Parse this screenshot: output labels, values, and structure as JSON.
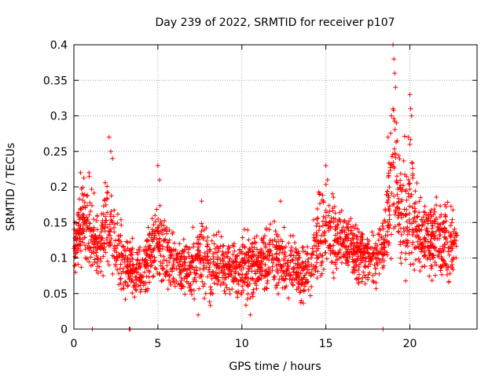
{
  "chart_data": {
    "type": "scatter",
    "title": "Day 239 of 2022, SRMTID for receiver p107",
    "xlabel": "GPS time / hours",
    "ylabel": "SRMTID / TECUs",
    "xlim": [
      0,
      24
    ],
    "ylim": [
      0,
      0.4
    ],
    "xticks": [
      0,
      5,
      10,
      15,
      20
    ],
    "xtick_labels": [
      "0",
      "5",
      "10",
      "15",
      "20"
    ],
    "yticks": [
      0,
      0.05,
      0.1,
      0.15,
      0.2,
      0.25,
      0.3,
      0.35,
      0.4
    ],
    "ytick_labels": [
      "0",
      "0.05",
      "0.1",
      "0.15",
      "0.2",
      "0.25",
      "0.3",
      "0.35",
      "0.4"
    ],
    "grid": true,
    "marker": "+",
    "color": "#ff0000",
    "data_extent": {
      "x_min": 0.0,
      "x_max": 22.8
    },
    "envelope": [
      {
        "x": 0.0,
        "low": 0.08,
        "high": 0.15
      },
      {
        "x": 0.5,
        "low": 0.08,
        "high": 0.22
      },
      {
        "x": 1.0,
        "low": 0.05,
        "high": 0.22
      },
      {
        "x": 1.5,
        "low": 0.06,
        "high": 0.17
      },
      {
        "x": 2.0,
        "low": 0.06,
        "high": 0.25
      },
      {
        "x": 2.5,
        "low": 0.04,
        "high": 0.2
      },
      {
        "x": 3.0,
        "low": 0.03,
        "high": 0.15
      },
      {
        "x": 4.0,
        "low": 0.04,
        "high": 0.12
      },
      {
        "x": 5.0,
        "low": 0.05,
        "high": 0.2
      },
      {
        "x": 6.0,
        "low": 0.04,
        "high": 0.14
      },
      {
        "x": 7.0,
        "low": 0.03,
        "high": 0.14
      },
      {
        "x": 7.5,
        "low": 0.03,
        "high": 0.18
      },
      {
        "x": 8.0,
        "low": 0.03,
        "high": 0.15
      },
      {
        "x": 9.0,
        "low": 0.04,
        "high": 0.14
      },
      {
        "x": 10.0,
        "low": 0.03,
        "high": 0.14
      },
      {
        "x": 10.5,
        "low": 0.03,
        "high": 0.16
      },
      {
        "x": 11.0,
        "low": 0.04,
        "high": 0.14
      },
      {
        "x": 12.0,
        "low": 0.04,
        "high": 0.17
      },
      {
        "x": 13.0,
        "low": 0.03,
        "high": 0.14
      },
      {
        "x": 14.0,
        "low": 0.02,
        "high": 0.14
      },
      {
        "x": 14.5,
        "low": 0.05,
        "high": 0.2
      },
      {
        "x": 15.0,
        "low": 0.06,
        "high": 0.22
      },
      {
        "x": 16.0,
        "low": 0.07,
        "high": 0.18
      },
      {
        "x": 17.0,
        "low": 0.05,
        "high": 0.16
      },
      {
        "x": 18.0,
        "low": 0.05,
        "high": 0.15
      },
      {
        "x": 18.5,
        "low": 0.05,
        "high": 0.2
      },
      {
        "x": 19.0,
        "low": 0.08,
        "high": 0.39
      },
      {
        "x": 19.5,
        "low": 0.05,
        "high": 0.25
      },
      {
        "x": 20.0,
        "low": 0.05,
        "high": 0.32
      },
      {
        "x": 20.5,
        "low": 0.06,
        "high": 0.2
      },
      {
        "x": 21.0,
        "low": 0.05,
        "high": 0.2
      },
      {
        "x": 22.0,
        "low": 0.05,
        "high": 0.2
      },
      {
        "x": 22.8,
        "low": 0.05,
        "high": 0.17
      }
    ],
    "highlight_points": [
      {
        "x": 0.05,
        "y": 0.15
      },
      {
        "x": 0.1,
        "y": 0.08
      },
      {
        "x": 0.4,
        "y": 0.22
      },
      {
        "x": 0.9,
        "y": 0.22
      },
      {
        "x": 2.1,
        "y": 0.27
      },
      {
        "x": 2.2,
        "y": 0.25
      },
      {
        "x": 2.3,
        "y": 0.24
      },
      {
        "x": 5.0,
        "y": 0.23
      },
      {
        "x": 5.1,
        "y": 0.21
      },
      {
        "x": 7.6,
        "y": 0.18
      },
      {
        "x": 12.3,
        "y": 0.18
      },
      {
        "x": 15.0,
        "y": 0.23
      },
      {
        "x": 15.1,
        "y": 0.21
      },
      {
        "x": 18.7,
        "y": 0.27
      },
      {
        "x": 18.9,
        "y": 0.3
      },
      {
        "x": 19.0,
        "y": 0.4
      },
      {
        "x": 19.05,
        "y": 0.38
      },
      {
        "x": 19.1,
        "y": 0.36
      },
      {
        "x": 19.15,
        "y": 0.34
      },
      {
        "x": 19.2,
        "y": 0.29
      },
      {
        "x": 19.0,
        "y": 0.31
      },
      {
        "x": 20.0,
        "y": 0.33
      },
      {
        "x": 20.05,
        "y": 0.31
      },
      {
        "x": 20.1,
        "y": 0.3
      },
      {
        "x": 19.9,
        "y": 0.27
      },
      {
        "x": 20.0,
        "y": 0.26
      },
      {
        "x": 10.5,
        "y": 0.02
      },
      {
        "x": 7.4,
        "y": 0.02
      },
      {
        "x": 3.3,
        "y": 0.0
      },
      {
        "x": 3.35,
        "y": 0.0
      },
      {
        "x": 1.1,
        "y": 0.0
      },
      {
        "x": 18.4,
        "y": 0.0
      }
    ]
  }
}
